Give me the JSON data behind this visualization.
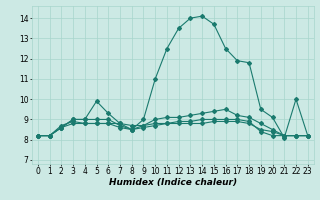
{
  "xlabel": "Humidex (Indice chaleur)",
  "ylabel": "",
  "xlim": [
    -0.5,
    23.5
  ],
  "ylim": [
    6.8,
    14.6
  ],
  "yticks": [
    7,
    8,
    9,
    10,
    11,
    12,
    13,
    14
  ],
  "xticks": [
    0,
    1,
    2,
    3,
    4,
    5,
    6,
    7,
    8,
    9,
    10,
    11,
    12,
    13,
    14,
    15,
    16,
    17,
    18,
    19,
    20,
    21,
    22,
    23
  ],
  "bg_color": "#cce9e4",
  "grid_color": "#a8d5cc",
  "line_color": "#1a7a6e",
  "lines": [
    [
      8.2,
      8.2,
      8.6,
      9.0,
      9.0,
      9.9,
      9.3,
      8.8,
      8.5,
      9.0,
      11.0,
      12.5,
      13.5,
      14.0,
      14.1,
      13.7,
      12.5,
      11.9,
      11.8,
      9.5,
      9.1,
      8.1,
      10.0,
      8.2
    ],
    [
      8.2,
      8.2,
      8.6,
      9.0,
      9.0,
      9.0,
      9.0,
      8.7,
      8.5,
      8.7,
      9.0,
      9.1,
      9.1,
      9.2,
      9.3,
      9.4,
      9.5,
      9.2,
      9.1,
      8.8,
      8.5,
      8.2,
      8.2,
      8.2
    ],
    [
      8.2,
      8.2,
      8.7,
      8.9,
      8.8,
      8.8,
      8.8,
      8.8,
      8.7,
      8.7,
      8.8,
      8.8,
      8.8,
      8.8,
      8.8,
      8.9,
      8.9,
      8.9,
      8.8,
      8.5,
      8.4,
      8.2,
      8.2,
      8.2
    ],
    [
      8.2,
      8.2,
      8.6,
      8.8,
      8.8,
      8.8,
      8.8,
      8.6,
      8.5,
      8.6,
      8.7,
      8.8,
      8.9,
      8.9,
      9.0,
      9.0,
      9.0,
      9.0,
      8.9,
      8.4,
      8.2,
      8.2,
      8.2,
      8.2
    ]
  ],
  "marker": "D",
  "markersize": 2.0,
  "linewidth": 0.8,
  "tick_labelsize": 5.5,
  "xlabel_fontsize": 6.5
}
